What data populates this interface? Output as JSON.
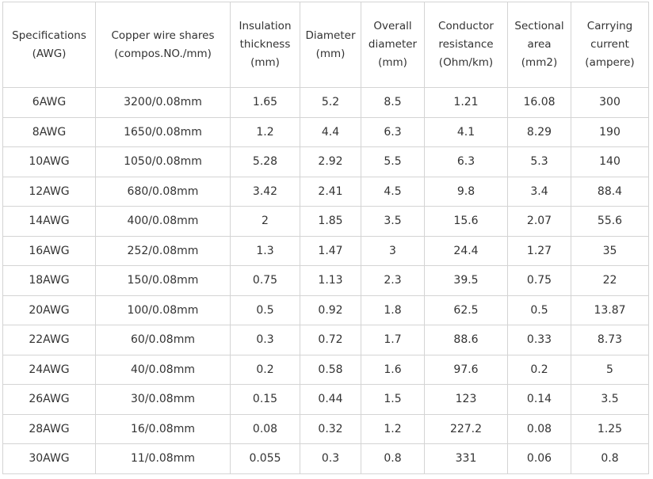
{
  "table": {
    "headers": [
      [
        "Specifications",
        "(AWG)"
      ],
      [
        "Copper wire shares",
        "(compos.NO./mm)"
      ],
      [
        "Insulation",
        "thickness",
        "(mm)"
      ],
      [
        "Diameter",
        "(mm)"
      ],
      [
        "Overall",
        "diameter",
        "(mm)"
      ],
      [
        "Conductor",
        "resistance",
        "(Ohm/km)"
      ],
      [
        "Sectional",
        "area",
        "(mm2)"
      ],
      [
        "Carrying",
        "current",
        "(ampere)"
      ]
    ],
    "rows": [
      [
        "6AWG",
        "3200/0.08mm",
        "1.65",
        "5.2",
        "8.5",
        "1.21",
        "16.08",
        "300"
      ],
      [
        "8AWG",
        "1650/0.08mm",
        "1.2",
        "4.4",
        "6.3",
        "4.1",
        "8.29",
        "190"
      ],
      [
        "10AWG",
        "1050/0.08mm",
        "5.28",
        "2.92",
        "5.5",
        "6.3",
        "5.3",
        "140"
      ],
      [
        "12AWG",
        "680/0.08mm",
        "3.42",
        "2.41",
        "4.5",
        "9.8",
        "3.4",
        "88.4"
      ],
      [
        "14AWG",
        "400/0.08mm",
        "2",
        "1.85",
        "3.5",
        "15.6",
        "2.07",
        "55.6"
      ],
      [
        "16AWG",
        "252/0.08mm",
        "1.3",
        "1.47",
        "3",
        "24.4",
        "1.27",
        "35"
      ],
      [
        "18AWG",
        "150/0.08mm",
        "0.75",
        "1.13",
        "2.3",
        "39.5",
        "0.75",
        "22"
      ],
      [
        "20AWG",
        "100/0.08mm",
        "0.5",
        "0.92",
        "1.8",
        "62.5",
        "0.5",
        "13.87"
      ],
      [
        "22AWG",
        "60/0.08mm",
        "0.3",
        "0.72",
        "1.7",
        "88.6",
        "0.33",
        "8.73"
      ],
      [
        "24AWG",
        "40/0.08mm",
        "0.2",
        "0.58",
        "1.6",
        "97.6",
        "0.2",
        "5"
      ],
      [
        "26AWG",
        "30/0.08mm",
        "0.15",
        "0.44",
        "1.5",
        "123",
        "0.14",
        "3.5"
      ],
      [
        "28AWG",
        "16/0.08mm",
        "0.08",
        "0.32",
        "1.2",
        "227.2",
        "0.08",
        "1.25"
      ],
      [
        "30AWG",
        "11/0.08mm",
        "0.055",
        "0.3",
        "0.8",
        "331",
        "0.06",
        "0.8"
      ]
    ]
  }
}
